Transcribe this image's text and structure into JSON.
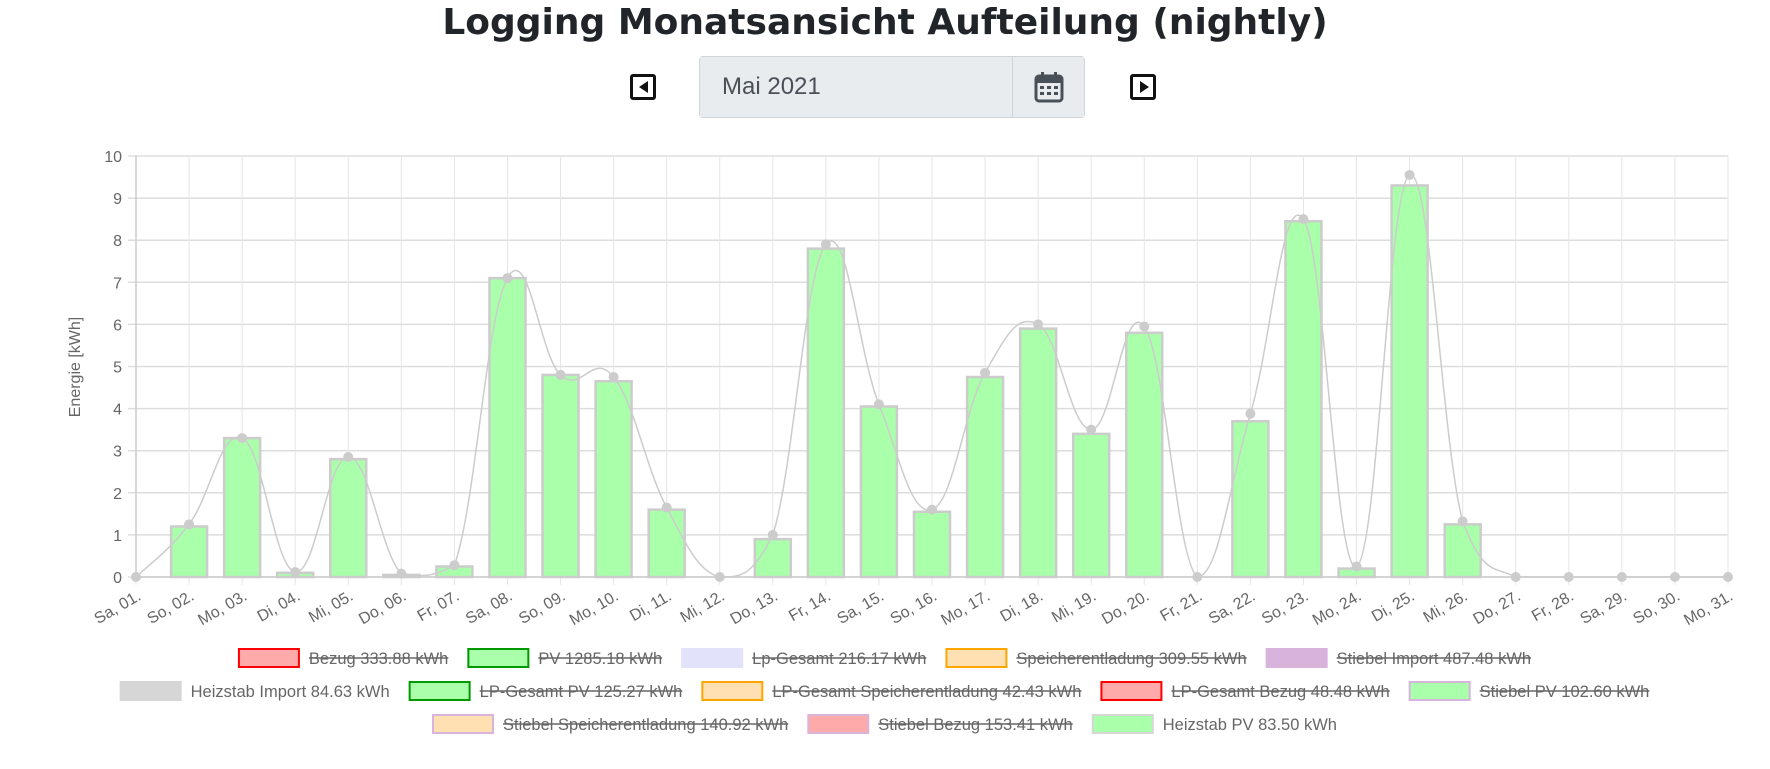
{
  "page": {
    "title": "Logging Monatsansicht Aufteilung (nightly)",
    "date_value": "Mai 2021"
  },
  "icons": {
    "prev": "caret-left-square-icon",
    "next": "caret-right-square-icon",
    "calendar": "calendar-icon"
  },
  "chart_data": {
    "type": "bar",
    "ylabel": "Energie [kWh]",
    "xlabel": "",
    "ylim": [
      0,
      10
    ],
    "yticks": [
      0,
      1,
      2,
      3,
      4,
      5,
      6,
      7,
      8,
      9,
      10
    ],
    "grid": true,
    "legend_position": "bottom",
    "categories": [
      "Sa, 01.",
      "So, 02.",
      "Mo, 03.",
      "Di, 04.",
      "Mi, 05.",
      "Do, 06.",
      "Fr, 07.",
      "Sa, 08.",
      "So, 09.",
      "Mo, 10.",
      "Di, 11.",
      "Mi, 12.",
      "Do, 13.",
      "Fr, 14.",
      "Sa, 15.",
      "So, 16.",
      "Mo, 17.",
      "Di, 18.",
      "Mi, 19.",
      "Do, 20.",
      "Fr, 21.",
      "Sa, 22.",
      "So, 23.",
      "Mo, 24.",
      "Di, 25.",
      "Mi, 26.",
      "Do, 27.",
      "Fr, 28.",
      "Sa, 29.",
      "So, 30.",
      "Mo, 31."
    ],
    "series": [
      {
        "name": "Heizstab PV 83.50 kWh",
        "type": "bar",
        "color": "#aaffaa",
        "border": "#cccccc",
        "values": [
          0,
          1.2,
          3.3,
          0.1,
          2.8,
          0.05,
          0.25,
          7.1,
          4.8,
          4.65,
          1.6,
          0,
          0.9,
          7.8,
          4.05,
          1.55,
          4.75,
          5.9,
          3.4,
          5.8,
          0,
          3.7,
          8.45,
          0.2,
          9.3,
          1.25,
          0,
          0,
          0,
          0,
          0
        ]
      },
      {
        "name": "Heizstab Import 84.63 kWh",
        "type": "line",
        "color": "#cccccc",
        "values": [
          0,
          1.25,
          3.3,
          0.12,
          2.85,
          0.08,
          0.28,
          7.1,
          4.8,
          4.75,
          1.65,
          0,
          1.0,
          7.9,
          4.1,
          1.6,
          4.85,
          6.0,
          3.5,
          5.95,
          0,
          3.88,
          8.5,
          0.25,
          9.55,
          1.32,
          0,
          0,
          0,
          0,
          0
        ]
      }
    ],
    "legend": [
      {
        "label": "Bezug 333.88 kWh",
        "fill": "#ffaaaa",
        "border": "#ff0000",
        "hidden": true
      },
      {
        "label": "PV 1285.18 kWh",
        "fill": "#aaffaa",
        "border": "#009900",
        "hidden": true
      },
      {
        "label": "Lp-Gesamt 216.17 kWh",
        "fill": "#e2e2fb",
        "border": "#e2e2fb",
        "hidden": true
      },
      {
        "label": "Speicherentladung 309.55 kWh",
        "fill": "#ffe0b2",
        "border": "#ffa500",
        "hidden": true
      },
      {
        "label": "Stiebel Import 487.48 kWh",
        "fill": "#d8b4dc",
        "border": "#d8b4dc",
        "hidden": true
      },
      {
        "label": "Heizstab Import 84.63 kWh",
        "fill": "#d6d6d6",
        "border": "#d6d6d6",
        "hidden": false
      },
      {
        "label": "LP-Gesamt PV 125.27 kWh",
        "fill": "#aaffaa",
        "border": "#009900",
        "hidden": true
      },
      {
        "label": "LP-Gesamt Speicherentladung 42.43 kWh",
        "fill": "#ffe0b2",
        "border": "#ffa500",
        "hidden": true
      },
      {
        "label": "LP-Gesamt Bezug 48.48 kWh",
        "fill": "#ffaaaa",
        "border": "#ff0000",
        "hidden": true
      },
      {
        "label": "Stiebel PV 102.60 kWh",
        "fill": "#aaffaa",
        "border": "#d8b4dc",
        "hidden": true
      },
      {
        "label": "Stiebel Speicherentladung 140.92 kWh",
        "fill": "#ffe0b2",
        "border": "#d8b4dc",
        "hidden": true
      },
      {
        "label": "Stiebel Bezug 153.41 kWh",
        "fill": "#ffaaaa",
        "border": "#d8b4dc",
        "hidden": true
      },
      {
        "label": "Heizstab PV 83.50 kWh",
        "fill": "#aaffaa",
        "border": "#d6d6d6",
        "hidden": false
      }
    ]
  }
}
